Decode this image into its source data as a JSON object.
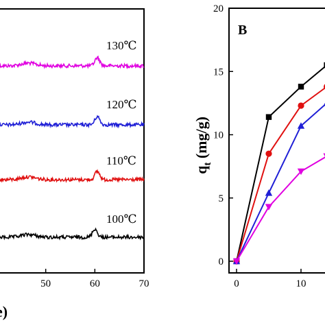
{
  "chart_data": [
    {
      "type": "line",
      "panel": "left",
      "xlabel_partial": "e)",
      "xlim": [
        40,
        70
      ],
      "x_ticks": [
        "50",
        "60",
        "70"
      ],
      "series": [
        {
          "name": "130℃",
          "color": "#e000e0",
          "peak_x": 60.5
        },
        {
          "name": "120℃",
          "color": "#1f1fd6",
          "peak_x": 60.5
        },
        {
          "name": "110℃",
          "color": "#e01010",
          "peak_x": 60.5
        },
        {
          "name": "100℃",
          "color": "#000000",
          "peak_x": 60.0
        }
      ]
    },
    {
      "type": "line",
      "panel": "right",
      "title": "B",
      "ylabel": "q",
      "ylabel_sub": "t",
      "ylabel_unit": " (mg/g)",
      "ylim": [
        0,
        20
      ],
      "xlim": [
        0,
        15
      ],
      "y_ticks": [
        "0",
        "5",
        "10",
        "15",
        "20"
      ],
      "x_ticks": [
        "0",
        "10"
      ],
      "series": [
        {
          "marker": "square",
          "color": "#000000",
          "x": [
            0,
            5,
            10,
            14
          ],
          "y": [
            0,
            11.4,
            13.8,
            15.5
          ]
        },
        {
          "marker": "circle",
          "color": "#e01010",
          "x": [
            0,
            5,
            10,
            14
          ],
          "y": [
            0,
            8.5,
            12.3,
            13.8
          ]
        },
        {
          "marker": "triangle-up",
          "color": "#1f1fd6",
          "x": [
            0,
            5,
            10,
            14
          ],
          "y": [
            0,
            5.4,
            10.7,
            12.5
          ]
        },
        {
          "marker": "triangle-down",
          "color": "#e000e0",
          "x": [
            0,
            5,
            10,
            14
          ],
          "y": [
            0,
            4.3,
            7.1,
            8.3
          ]
        }
      ]
    }
  ]
}
